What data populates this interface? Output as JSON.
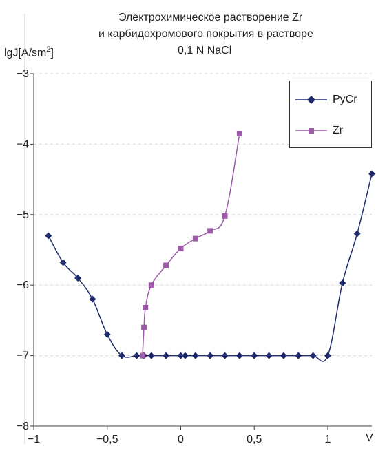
{
  "chart_data": {
    "type": "line",
    "title_lines": [
      "Электрохимическое растворение Zr",
      "и карбидохромового покрытия в растворе",
      "0,1 N NaCl"
    ],
    "ylabel": "lgJ[A/sm",
    "ylabel_sup": "2",
    "ylabel_end": "]",
    "xlabel": "V",
    "xlim": [
      -1,
      1.3
    ],
    "ylim": [
      -8,
      -3
    ],
    "x_ticks": [
      "−1",
      "−0,5",
      "0",
      "0,5",
      "1"
    ],
    "y_ticks": [
      "−3",
      "−4",
      "−5",
      "−6",
      "−7",
      "−8"
    ],
    "x_tick_values": [
      -1,
      -0.5,
      0,
      0.5,
      1
    ],
    "y_tick_values": [
      -3,
      -4,
      -5,
      -6,
      -7,
      -8
    ],
    "grid": "horizontal dashed",
    "legend_position": "top-right",
    "series": [
      {
        "name": "PyCr",
        "color": "#1f2a6b",
        "marker": "diamond",
        "points": [
          [
            -0.9,
            -5.3
          ],
          [
            -0.8,
            -5.68
          ],
          [
            -0.7,
            -5.9
          ],
          [
            -0.6,
            -6.2
          ],
          [
            -0.5,
            -6.7
          ],
          [
            -0.4,
            -7.0
          ],
          [
            -0.3,
            -7.0
          ],
          [
            -0.25,
            -7.0
          ],
          [
            -0.2,
            -7.0
          ],
          [
            -0.1,
            -7.0
          ],
          [
            0.0,
            -7.0
          ],
          [
            0.03,
            -7.0
          ],
          [
            0.1,
            -7.0
          ],
          [
            0.2,
            -7.0
          ],
          [
            0.3,
            -7.0
          ],
          [
            0.4,
            -7.0
          ],
          [
            0.5,
            -7.0
          ],
          [
            0.6,
            -7.0
          ],
          [
            0.7,
            -7.0
          ],
          [
            0.8,
            -7.0
          ],
          [
            0.9,
            -7.0
          ],
          [
            1.0,
            -7.0
          ],
          [
            1.1,
            -5.97
          ],
          [
            1.2,
            -5.27
          ],
          [
            1.3,
            -4.42
          ]
        ]
      },
      {
        "name": "Zr",
        "color": "#9b5ba6",
        "marker": "square",
        "points": [
          [
            -0.26,
            -7.0
          ],
          [
            -0.25,
            -6.6
          ],
          [
            -0.24,
            -6.32
          ],
          [
            -0.2,
            -6.0
          ],
          [
            -0.1,
            -5.72
          ],
          [
            0.0,
            -5.48
          ],
          [
            0.1,
            -5.34
          ],
          [
            0.2,
            -5.23
          ],
          [
            0.3,
            -5.02
          ],
          [
            0.4,
            -3.85
          ]
        ]
      }
    ]
  }
}
